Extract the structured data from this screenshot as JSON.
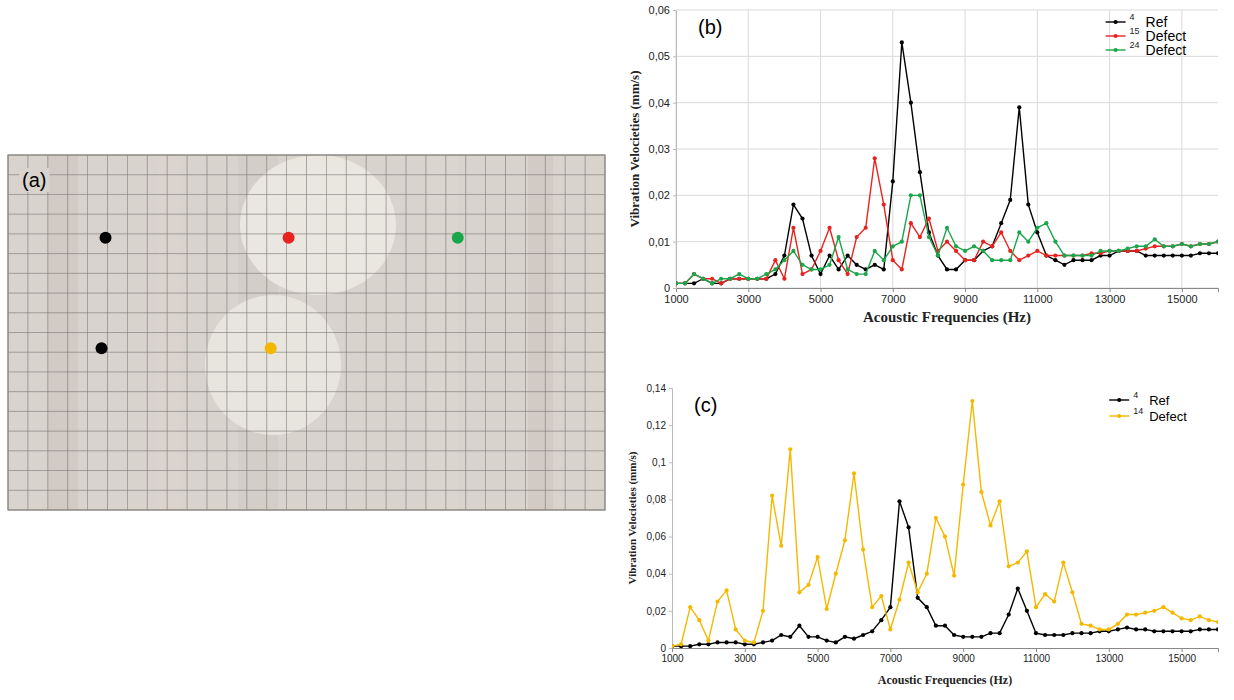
{
  "chart_data": [
    {
      "type": "scatter",
      "title": "(a)",
      "x": [
        4.9,
        14.1,
        22.6,
        4.7,
        13.2
      ],
      "values": [
        13.8,
        13.8,
        13.8,
        8.2,
        8.2
      ],
      "colors": [
        "#000000",
        "#e8231f",
        "#1aa64a",
        "#000000",
        "#f5b800"
      ],
      "marker": "circle",
      "xlim": [
        0,
        30
      ],
      "ylim": [
        0,
        18
      ],
      "xticks": [
        0,
        1,
        2,
        3,
        4,
        5,
        6,
        7,
        8,
        9,
        10,
        11,
        12,
        13,
        14,
        15,
        16,
        17,
        18,
        19,
        20,
        21,
        22,
        23,
        24,
        25,
        26,
        27,
        28,
        29,
        30
      ],
      "yticks": [
        0,
        1,
        2,
        3,
        4,
        5,
        6,
        7,
        8,
        9,
        10,
        11,
        12,
        13,
        14,
        15,
        16,
        17,
        18
      ],
      "grid": true,
      "tick_labels": false
    },
    {
      "type": "line",
      "title": "(b)",
      "x_label": "Acoustic Frequencies (Hz)",
      "y_label": "Vibration Velocieties (mm/s)",
      "x": [
        1000,
        1250,
        1500,
        1750,
        2000,
        2250,
        2500,
        2750,
        3000,
        3250,
        3500,
        3750,
        4000,
        4250,
        4500,
        4750,
        5000,
        5250,
        5500,
        5750,
        6000,
        6250,
        6500,
        6750,
        7000,
        7250,
        7500,
        7750,
        8000,
        8250,
        8500,
        8750,
        9000,
        9250,
        9500,
        9750,
        10000,
        10250,
        10500,
        10750,
        11000,
        11250,
        11500,
        11750,
        12000,
        12250,
        12500,
        12750,
        13000,
        13250,
        13500,
        13750,
        14000,
        14250,
        14500,
        14750,
        15000,
        15250,
        15500,
        15750,
        16000
      ],
      "series": [
        {
          "name": "4",
          "color": "#000000",
          "values": [
            0.001,
            0.001,
            0.001,
            0.002,
            0.001,
            0.001,
            0.002,
            0.002,
            0.002,
            0.002,
            0.002,
            0.003,
            0.007,
            0.018,
            0.015,
            0.007,
            0.003,
            0.007,
            0.004,
            0.007,
            0.005,
            0.004,
            0.005,
            0.004,
            0.023,
            0.053,
            0.04,
            0.025,
            0.012,
            0.007,
            0.004,
            0.004,
            0.006,
            0.006,
            0.008,
            0.009,
            0.014,
            0.019,
            0.039,
            0.018,
            0.012,
            0.007,
            0.006,
            0.005,
            0.006,
            0.006,
            0.006,
            0.007,
            0.007,
            0.008,
            0.008,
            0.008,
            0.007,
            0.007,
            0.007,
            0.007,
            0.007,
            0.007,
            0.0075,
            0.0075,
            0.0075
          ]
        },
        {
          "name": "15",
          "color": "#e8231f",
          "values": [
            0.001,
            0.001,
            0.003,
            0.002,
            0.002,
            0.001,
            0.002,
            0.002,
            0.002,
            0.002,
            0.002,
            0.006,
            0.002,
            0.013,
            0.003,
            0.004,
            0.008,
            0.013,
            0.006,
            0.003,
            0.011,
            0.013,
            0.028,
            0.018,
            0.006,
            0.004,
            0.014,
            0.011,
            0.015,
            0.008,
            0.01,
            0.008,
            0.006,
            0.006,
            0.01,
            0.009,
            0.012,
            0.008,
            0.006,
            0.007,
            0.008,
            0.007,
            0.007,
            0.007,
            0.007,
            0.007,
            0.0075,
            0.0075,
            0.008,
            0.008,
            0.008,
            0.008,
            0.0085,
            0.009,
            0.009,
            0.009,
            0.0095,
            0.009,
            0.0095,
            0.0095,
            0.01
          ]
        },
        {
          "name": "24",
          "color": "#1aa64a",
          "values": [
            0.001,
            0.001,
            0.003,
            0.002,
            0.001,
            0.002,
            0.002,
            0.003,
            0.002,
            0.002,
            0.003,
            0.004,
            0.006,
            0.008,
            0.005,
            0.004,
            0.004,
            0.005,
            0.011,
            0.004,
            0.003,
            0.003,
            0.008,
            0.006,
            0.009,
            0.01,
            0.02,
            0.02,
            0.011,
            0.007,
            0.013,
            0.009,
            0.008,
            0.009,
            0.008,
            0.006,
            0.006,
            0.006,
            0.012,
            0.01,
            0.013,
            0.014,
            0.01,
            0.007,
            0.007,
            0.007,
            0.007,
            0.008,
            0.008,
            0.008,
            0.0085,
            0.009,
            0.009,
            0.0105,
            0.009,
            0.009,
            0.0095,
            0.009,
            0.0095,
            0.0095,
            0.01
          ]
        }
      ],
      "annotations": [
        "Ref",
        "Defect",
        "Defect"
      ],
      "xlim": [
        1000,
        16000
      ],
      "ylim": [
        0,
        0.06
      ],
      "xticks": [
        1000,
        3000,
        5000,
        7000,
        9000,
        11000,
        13000,
        15000
      ],
      "yticks": [
        0,
        {
          "value": 0.01,
          "label": "0,01"
        },
        {
          "value": 0.02,
          "label": "0,02"
        },
        {
          "value": 0.03,
          "label": "0,03"
        },
        {
          "value": 0.04,
          "label": "0,04"
        },
        {
          "value": 0.05,
          "label": "0,05"
        },
        {
          "value": 0.06,
          "label": "0,06"
        }
      ],
      "grid": true,
      "legend": "upper right",
      "marker": "circle"
    },
    {
      "type": "line",
      "title": "(c)",
      "x_label": "Acoustic Frequencies (Hz)",
      "y_label": "Vibration Velocieties (mm/s)",
      "x": [
        1000,
        1250,
        1500,
        1750,
        2000,
        2250,
        2500,
        2750,
        3000,
        3250,
        3500,
        3750,
        4000,
        4250,
        4500,
        4750,
        5000,
        5250,
        5500,
        5750,
        6000,
        6250,
        6500,
        6750,
        7000,
        7250,
        7500,
        7750,
        8000,
        8250,
        8500,
        8750,
        9000,
        9250,
        9500,
        9750,
        10000,
        10250,
        10500,
        10750,
        11000,
        11250,
        11500,
        11750,
        12000,
        12250,
        12500,
        12750,
        13000,
        13250,
        13500,
        13750,
        14000,
        14250,
        14500,
        14750,
        15000,
        15250,
        15500,
        15750,
        16000
      ],
      "series": [
        {
          "name": "4",
          "color": "#000000",
          "values": [
            0.001,
            0.001,
            0.001,
            0.002,
            0.002,
            0.003,
            0.003,
            0.003,
            0.002,
            0.002,
            0.003,
            0.004,
            0.007,
            0.006,
            0.012,
            0.006,
            0.006,
            0.004,
            0.003,
            0.006,
            0.005,
            0.007,
            0.009,
            0.015,
            0.022,
            0.079,
            0.065,
            0.027,
            0.022,
            0.012,
            0.012,
            0.007,
            0.006,
            0.006,
            0.006,
            0.008,
            0.008,
            0.018,
            0.032,
            0.02,
            0.008,
            0.007,
            0.007,
            0.007,
            0.008,
            0.008,
            0.008,
            0.009,
            0.009,
            0.01,
            0.011,
            0.01,
            0.01,
            0.009,
            0.009,
            0.009,
            0.009,
            0.009,
            0.01,
            0.01,
            0.01
          ]
        },
        {
          "name": "14",
          "color": "#f5b800",
          "values": [
            0.001,
            0.002,
            0.022,
            0.015,
            0.004,
            0.025,
            0.031,
            0.01,
            0.004,
            0.003,
            0.02,
            0.082,
            0.055,
            0.107,
            0.03,
            0.034,
            0.049,
            0.021,
            0.04,
            0.058,
            0.094,
            0.053,
            0.022,
            0.028,
            0.01,
            0.026,
            0.046,
            0.03,
            0.04,
            0.07,
            0.06,
            0.039,
            0.088,
            0.133,
            0.084,
            0.066,
            0.079,
            0.044,
            0.046,
            0.052,
            0.022,
            0.029,
            0.025,
            0.046,
            0.03,
            0.013,
            0.012,
            0.01,
            0.01,
            0.013,
            0.018,
            0.018,
            0.019,
            0.02,
            0.022,
            0.019,
            0.016,
            0.015,
            0.017,
            0.015,
            0.014
          ]
        }
      ],
      "annotations": [
        "Ref",
        "Defect"
      ],
      "xlim": [
        1000,
        16000
      ],
      "ylim": [
        0,
        0.14
      ],
      "xticks": [
        1000,
        3000,
        5000,
        7000,
        9000,
        11000,
        13000,
        15000
      ],
      "yticks": [
        0,
        {
          "value": 0.02,
          "label": "0,02"
        },
        {
          "value": 0.04,
          "label": "0,04"
        },
        {
          "value": 0.06,
          "label": "0,06"
        },
        {
          "value": 0.08,
          "label": "0,08"
        },
        {
          "value": 0.1,
          "label": "0,1"
        },
        {
          "value": 0.12,
          "label": "0,12"
        },
        {
          "value": 0.14,
          "label": "0,14"
        }
      ],
      "grid": false,
      "legend": "upper right",
      "marker": "circle"
    }
  ]
}
